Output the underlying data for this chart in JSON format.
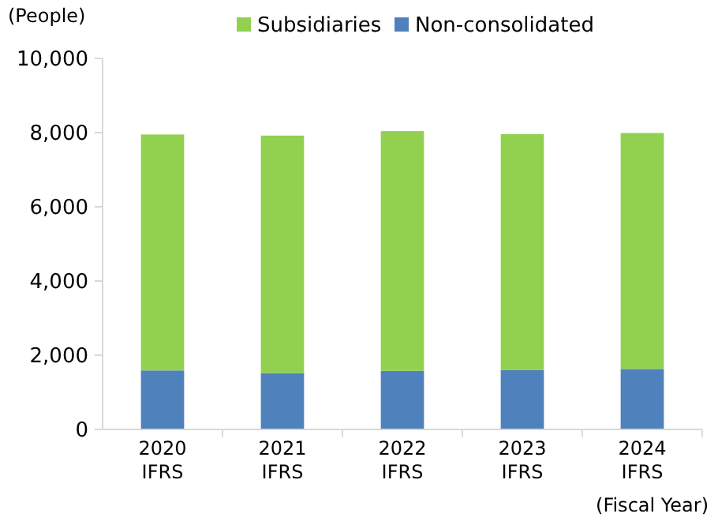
{
  "chart_data": {
    "type": "bar",
    "stacked": true,
    "ylabel": "(People)",
    "xlabel": "(Fiscal Year)",
    "categories": [
      "2020\nIFRS",
      "2021\nIFRS",
      "2022\nIFRS",
      "2023\nIFRS",
      "2024\nIFRS"
    ],
    "series": [
      {
        "name": "Non-consolidated",
        "color": "#4f81bd",
        "values": [
          1590,
          1520,
          1580,
          1600,
          1630
        ]
      },
      {
        "name": "Subsidiaries",
        "color": "#92d050",
        "values": [
          6360,
          6400,
          6460,
          6360,
          6360
        ]
      }
    ],
    "ylim": [
      0,
      10000
    ],
    "yticks": [
      {
        "value": 0,
        "label": "0"
      },
      {
        "value": 2000,
        "label": "2,000"
      },
      {
        "value": 4000,
        "label": "4,000"
      },
      {
        "value": 6000,
        "label": "6,000"
      },
      {
        "value": 8000,
        "label": "8,000"
      },
      {
        "value": 10000,
        "label": "10,000"
      }
    ],
    "legend": "top"
  }
}
